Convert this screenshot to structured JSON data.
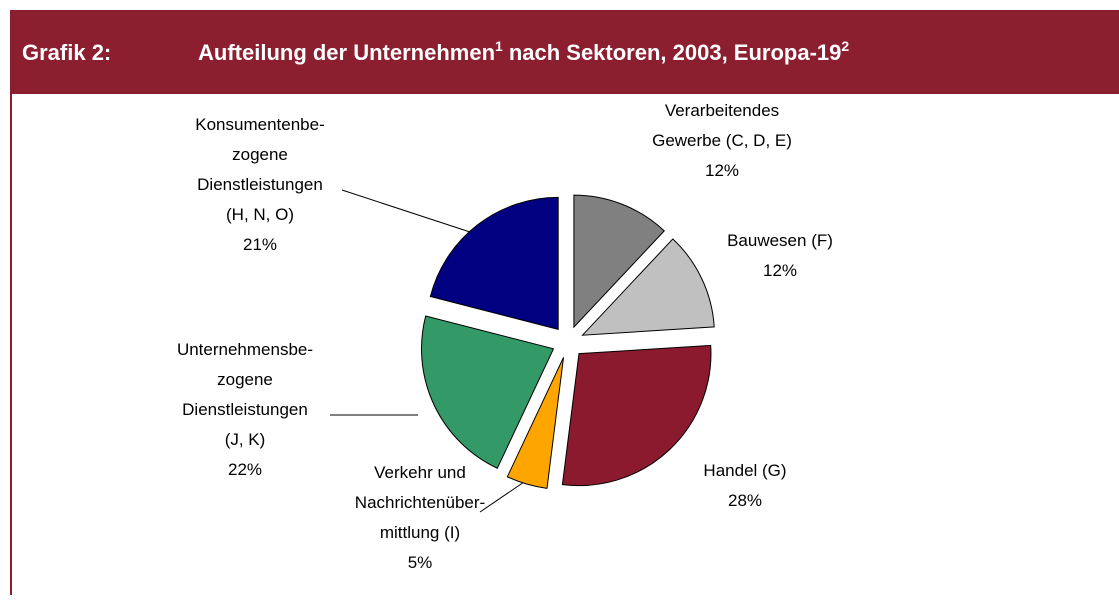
{
  "chart_data": {
    "type": "pie",
    "figure_label": "Grafik 2:",
    "title": "Aufteilung der Unternehmen",
    "title_footnote": "1",
    "title_rest": "nach Sektoren, 2003, Europa-19",
    "title_footnote_2": "2",
    "categories": [
      "Verarbeitendes\nGewerbe (C, D, E)",
      "Bauwesen (F)",
      "Handel (G)",
      "Verkehr und\nNachrichtenüber-\nmittlung (I)",
      "Unternehmensbe-\nzogene\nDienstleistungen\n(J, K)",
      "Konsumentenbe-\nzogene\nDienstleistungen\n(H, N, O)"
    ],
    "values": [
      12,
      12,
      28,
      5,
      22,
      21
    ],
    "value_labels": [
      "12%",
      "12%",
      "28%",
      "5%",
      "22%",
      "21%"
    ],
    "colors": [
      "#808080",
      "#c0c0c0",
      "#8b1a2e",
      "#ffa500",
      "#339966",
      "#000080"
    ]
  }
}
